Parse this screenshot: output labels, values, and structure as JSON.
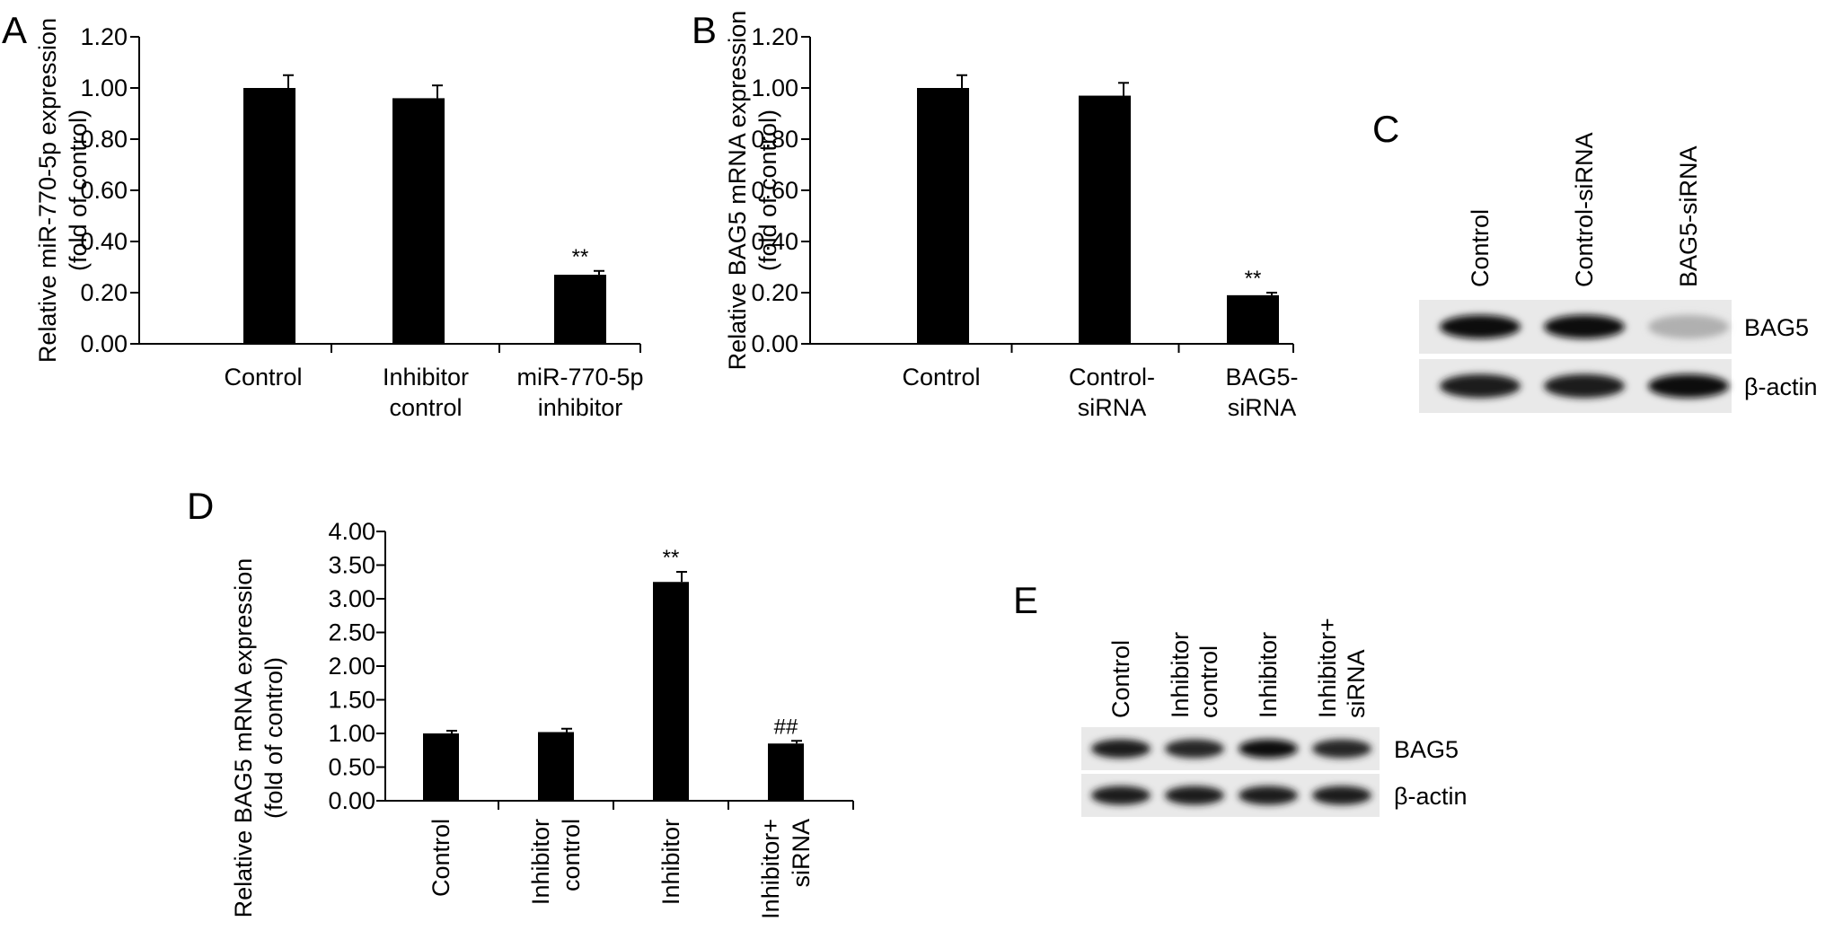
{
  "panels": [
    {
      "id": "A",
      "letter": "A"
    },
    {
      "id": "B",
      "letter": "B"
    },
    {
      "id": "C",
      "letter": "C"
    },
    {
      "id": "D",
      "letter": "D"
    },
    {
      "id": "E",
      "letter": "E"
    }
  ],
  "chart_data": [
    {
      "panel": "A",
      "type": "bar",
      "ylabel": [
        "Relative miR-770-5p expression",
        "(fold of control)"
      ],
      "categories": [
        [
          "Control"
        ],
        [
          "Inhibitor",
          "control"
        ],
        [
          "miR-770-5p",
          "inhibitor"
        ]
      ],
      "values": [
        1.0,
        0.96,
        0.27
      ],
      "errors": [
        0.05,
        0.05,
        0.015
      ],
      "annotations": [
        "",
        "",
        "**"
      ],
      "ylim": [
        0,
        1.2
      ],
      "yticks": [
        "0.00",
        "0.20",
        "0.40",
        "0.60",
        "0.80",
        "1.00",
        "1.20"
      ],
      "bar_color": "#000000"
    },
    {
      "panel": "B",
      "type": "bar",
      "ylabel": [
        "Relative BAG5 mRNA expression",
        "(fold of control)"
      ],
      "categories": [
        [
          "Control"
        ],
        [
          "Control-",
          "siRNA"
        ],
        [
          "BAG5-",
          "siRNA"
        ]
      ],
      "values": [
        1.0,
        0.97,
        0.19
      ],
      "errors": [
        0.05,
        0.05,
        0.01
      ],
      "annotations": [
        "",
        "",
        "**"
      ],
      "ylim": [
        0,
        1.2
      ],
      "yticks": [
        "0.00",
        "0.20",
        "0.40",
        "0.60",
        "0.80",
        "1.00",
        "1.20"
      ],
      "bar_color": "#000000"
    },
    {
      "panel": "D",
      "type": "bar",
      "ylabel": [
        "Relative BAG5 mRNA expression",
        "(fold of control)"
      ],
      "categories": [
        [
          "Control"
        ],
        [
          "Inhibitor",
          "control"
        ],
        [
          "Inhibitor"
        ],
        [
          "Inhibitor+",
          "siRNA"
        ]
      ],
      "values": [
        1.0,
        1.02,
        3.25,
        0.85
      ],
      "errors": [
        0.04,
        0.05,
        0.15,
        0.04
      ],
      "annotations": [
        "",
        "",
        "**",
        "##"
      ],
      "ylim": [
        0,
        4.0
      ],
      "yticks": [
        "0.00",
        "0.50",
        "1.00",
        "1.50",
        "2.00",
        "2.50",
        "3.00",
        "3.50",
        "4.00"
      ],
      "bar_color": "#000000"
    }
  ],
  "blots": [
    {
      "panel": "C",
      "lanes": [
        "Control",
        "Control-siRNA",
        "BAG5-siRNA"
      ],
      "rows": [
        {
          "label": "BAG5",
          "intensities": [
            1.0,
            1.0,
            0.25
          ]
        },
        {
          "label": "β-actin",
          "intensities": [
            0.95,
            0.95,
            1.0
          ]
        }
      ]
    },
    {
      "panel": "E",
      "lanes": [
        [
          "Control"
        ],
        [
          "Inhibitor",
          "control"
        ],
        [
          "Inhibitor"
        ],
        [
          "Inhibitor+",
          "siRNA"
        ]
      ],
      "rows": [
        {
          "label": "BAG5",
          "intensities": [
            0.95,
            0.9,
            1.0,
            0.9
          ]
        },
        {
          "label": "β-actin",
          "intensities": [
            0.95,
            0.95,
            0.95,
            0.95
          ]
        }
      ]
    }
  ]
}
